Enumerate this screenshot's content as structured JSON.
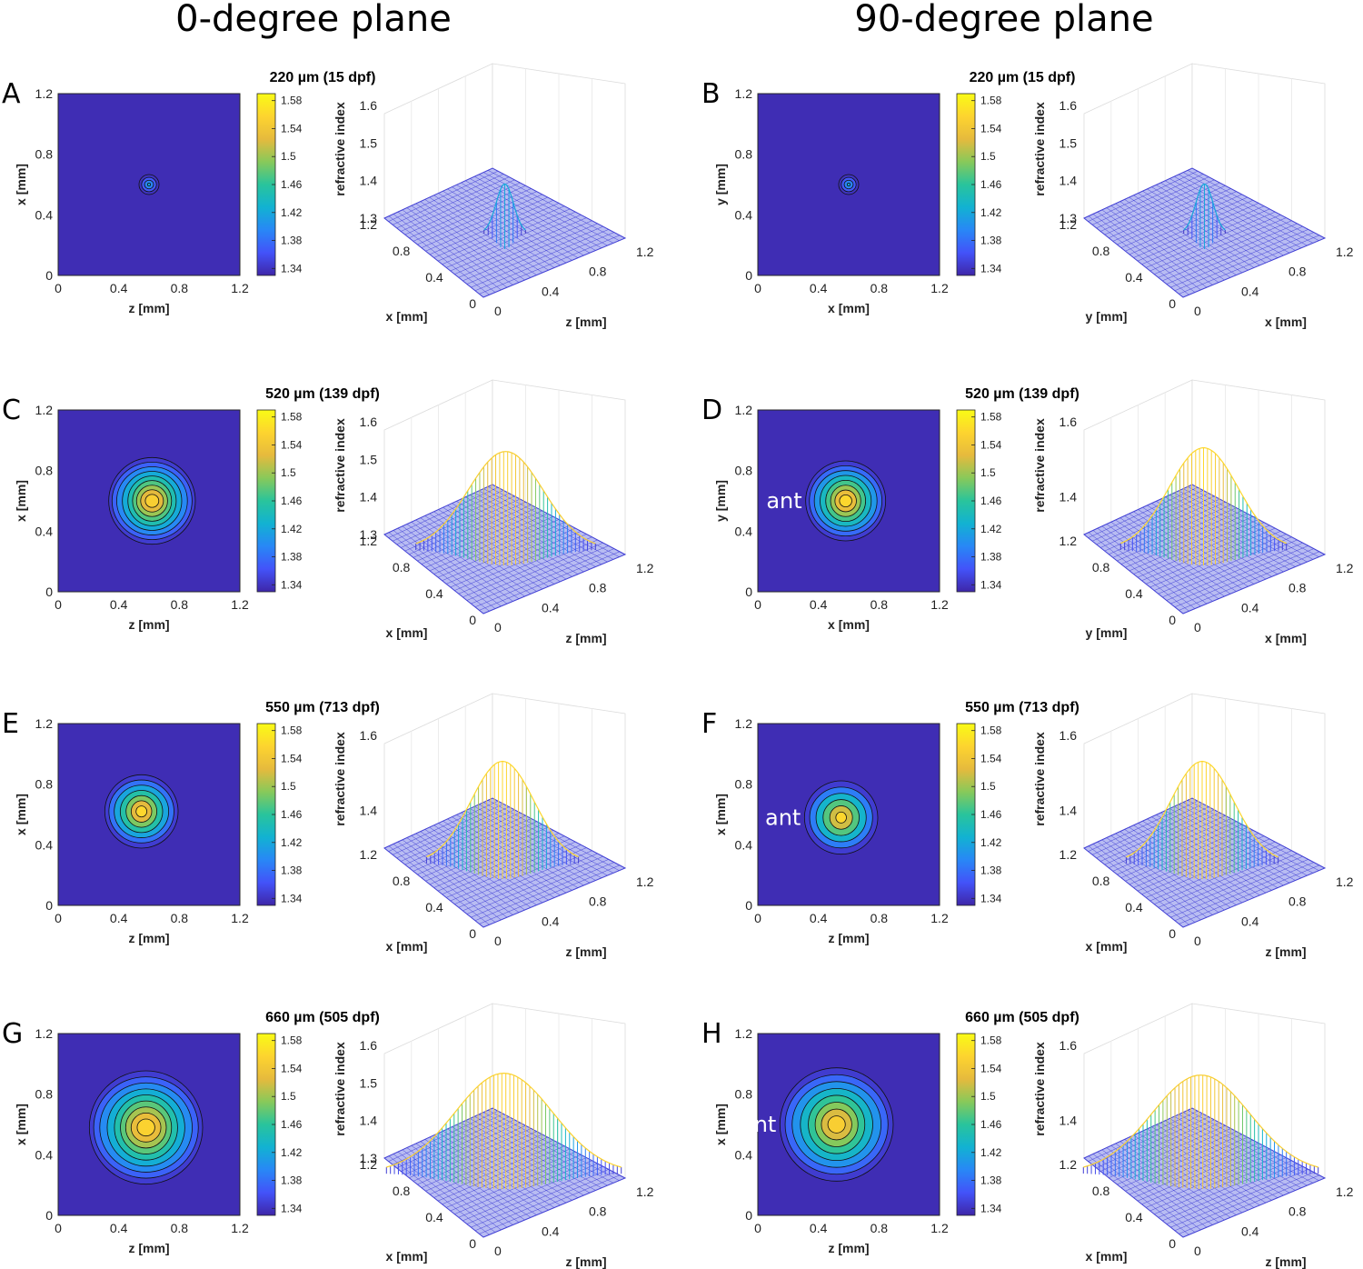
{
  "column_headers": [
    "0-degree plane",
    "90-degree plane"
  ],
  "chart_data": [
    {
      "panel": "A",
      "type": "heatmap",
      "subtype": "contour map + 3D mesh surface",
      "title": "220 µm (15 dpf)",
      "xlabel": "z [mm]",
      "ylabel": "x [mm]",
      "zlabel": "refractive index",
      "ticks": [
        "0",
        "0.4",
        "0.8",
        "1.2"
      ],
      "xlim": [
        0,
        1.2
      ],
      "ylim": [
        0,
        1.2
      ],
      "colorbar": {
        "ticks": [
          "1.34",
          "1.38",
          "1.42",
          "1.46",
          "1.5",
          "1.54",
          "1.58"
        ],
        "range": [
          1.33,
          1.59
        ]
      },
      "zticks": [
        "1.3",
        "1.4",
        "1.5",
        "1.6"
      ],
      "center": [
        0.6,
        0.6
      ],
      "sigma": 0.03,
      "background": 1.335,
      "peak": 1.42,
      "contours": 4,
      "annotation": "",
      "colormap": [
        "#3e26a8",
        "#4353f9",
        "#2887f6",
        "#12b2d2",
        "#29c49c",
        "#88c95a",
        "#e6ba3d",
        "#fdd42f",
        "#f9fb15"
      ],
      "grid": true
    },
    {
      "panel": "B",
      "type": "heatmap",
      "subtype": "contour map + 3D mesh surface",
      "title": "220 µm (15 dpf)",
      "xlabel": "x [mm]",
      "ylabel": "y [mm]",
      "zlabel": "refractive index",
      "ticks": [
        "0",
        "0.4",
        "0.8",
        "1.2"
      ],
      "xlim": [
        0,
        1.2
      ],
      "ylim": [
        0,
        1.2
      ],
      "colorbar": {
        "ticks": [
          "1.34",
          "1.38",
          "1.42",
          "1.46",
          "1.5",
          "1.54",
          "1.58"
        ],
        "range": [
          1.33,
          1.59
        ]
      },
      "zticks": [
        "1.3",
        "1.4",
        "1.5",
        "1.6"
      ],
      "center": [
        0.6,
        0.6
      ],
      "sigma": 0.03,
      "background": 1.335,
      "peak": 1.42,
      "contours": 4,
      "annotation": "",
      "colormap": [
        "#3e26a8",
        "#4353f9",
        "#2887f6",
        "#12b2d2",
        "#29c49c",
        "#88c95a",
        "#e6ba3d",
        "#fdd42f",
        "#f9fb15"
      ],
      "grid": true
    },
    {
      "panel": "C",
      "type": "heatmap",
      "subtype": "contour map + 3D mesh surface",
      "title": "520 µm (139 dpf)",
      "xlabel": "z [mm]",
      "ylabel": "x [mm]",
      "zlabel": "refractive index",
      "ticks": [
        "0",
        "0.4",
        "0.8",
        "1.2"
      ],
      "xlim": [
        0,
        1.2
      ],
      "ylim": [
        0,
        1.2
      ],
      "colorbar": {
        "ticks": [
          "1.34",
          "1.38",
          "1.42",
          "1.46",
          "1.5",
          "1.54",
          "1.58"
        ],
        "range": [
          1.33,
          1.59
        ]
      },
      "zticks": [
        "1.3",
        "1.4",
        "1.5",
        "1.6"
      ],
      "center": [
        0.62,
        0.6
      ],
      "sigma": 0.13,
      "background": 1.335,
      "peak": 1.55,
      "contours": 9,
      "annotation": "",
      "colormap": [
        "#3e26a8",
        "#4353f9",
        "#2887f6",
        "#12b2d2",
        "#29c49c",
        "#88c95a",
        "#e6ba3d",
        "#fdd42f",
        "#f9fb15"
      ],
      "grid": true
    },
    {
      "panel": "D",
      "type": "heatmap",
      "subtype": "contour map + 3D mesh surface",
      "title": "520 µm (139 dpf)",
      "xlabel": "x [mm]",
      "ylabel": "y [mm]",
      "zlabel": "refractive index",
      "ticks": [
        "0",
        "0.4",
        "0.8",
        "1.2"
      ],
      "xlim": [
        0,
        1.2
      ],
      "ylim": [
        0,
        1.2
      ],
      "colorbar": {
        "ticks": [
          "1.34",
          "1.38",
          "1.42",
          "1.46",
          "1.5",
          "1.54",
          "1.58"
        ],
        "range": [
          1.33,
          1.59
        ]
      },
      "zticks": [
        "1.4",
        "1.6"
      ],
      "center": [
        0.58,
        0.6
      ],
      "sigma": 0.12,
      "background": 1.335,
      "peak": 1.56,
      "contours": 8,
      "annotation": "ant",
      "colormap": [
        "#3e26a8",
        "#4353f9",
        "#2887f6",
        "#12b2d2",
        "#29c49c",
        "#88c95a",
        "#e6ba3d",
        "#fdd42f",
        "#f9fb15"
      ],
      "grid": true
    },
    {
      "panel": "E",
      "type": "heatmap",
      "subtype": "contour map + 3D mesh surface",
      "title": "550 µm (713 dpf)",
      "xlabel": "z [mm]",
      "ylabel": "x [mm]",
      "zlabel": "refractive index",
      "ticks": [
        "0",
        "0.4",
        "0.8",
        "1.2"
      ],
      "xlim": [
        0,
        1.2
      ],
      "ylim": [
        0,
        1.2
      ],
      "colorbar": {
        "ticks": [
          "1.34",
          "1.38",
          "1.42",
          "1.46",
          "1.5",
          "1.54",
          "1.58"
        ],
        "range": [
          1.33,
          1.59
        ]
      },
      "zticks": [
        "1.4",
        "1.6"
      ],
      "center": [
        0.55,
        0.62
      ],
      "sigma": 0.11,
      "background": 1.335,
      "peak": 1.56,
      "contours": 7,
      "annotation": "",
      "colormap": [
        "#3e26a8",
        "#4353f9",
        "#2887f6",
        "#12b2d2",
        "#29c49c",
        "#88c95a",
        "#e6ba3d",
        "#fdd42f",
        "#f9fb15"
      ],
      "grid": true
    },
    {
      "panel": "F",
      "type": "heatmap",
      "subtype": "contour map + 3D mesh surface",
      "title": "550 µm (713 dpf)",
      "xlabel": "z [mm]",
      "ylabel": "x [mm]",
      "zlabel": "refractive index",
      "ticks": [
        "0",
        "0.4",
        "0.8",
        "1.2"
      ],
      "xlim": [
        0,
        1.2
      ],
      "ylim": [
        0,
        1.2
      ],
      "colorbar": {
        "ticks": [
          "1.34",
          "1.38",
          "1.42",
          "1.46",
          "1.5",
          "1.54",
          "1.58"
        ],
        "range": [
          1.33,
          1.59
        ]
      },
      "zticks": [
        "1.4",
        "1.6"
      ],
      "center": [
        0.55,
        0.58
      ],
      "sigma": 0.11,
      "background": 1.335,
      "peak": 1.56,
      "contours": 6,
      "annotation": "ant",
      "colormap": [
        "#3e26a8",
        "#4353f9",
        "#2887f6",
        "#12b2d2",
        "#29c49c",
        "#88c95a",
        "#e6ba3d",
        "#fdd42f",
        "#f9fb15"
      ],
      "grid": true
    },
    {
      "panel": "G",
      "type": "heatmap",
      "subtype": "contour map + 3D mesh surface",
      "title": "660 µm (505 dpf)",
      "xlabel": "z [mm]",
      "ylabel": "x [mm]",
      "zlabel": "refractive index",
      "ticks": [
        "0",
        "0.4",
        "0.8",
        "1.2"
      ],
      "xlim": [
        0,
        1.2
      ],
      "ylim": [
        0,
        1.2
      ],
      "colorbar": {
        "ticks": [
          "1.34",
          "1.38",
          "1.42",
          "1.46",
          "1.5",
          "1.54",
          "1.58"
        ],
        "range": [
          1.33,
          1.59
        ]
      },
      "zticks": [
        "1.3",
        "1.4",
        "1.5",
        "1.6"
      ],
      "center": [
        0.58,
        0.58
      ],
      "sigma": 0.17,
      "background": 1.335,
      "peak": 1.555,
      "contours": 9,
      "annotation": "",
      "colormap": [
        "#3e26a8",
        "#4353f9",
        "#2887f6",
        "#12b2d2",
        "#29c49c",
        "#88c95a",
        "#e6ba3d",
        "#fdd42f",
        "#f9fb15"
      ],
      "grid": true
    },
    {
      "panel": "H",
      "type": "heatmap",
      "subtype": "contour map + 3D mesh surface",
      "title": "660 µm (505 dpf)",
      "xlabel": "z [mm]",
      "ylabel": "x [mm]",
      "zlabel": "refractive index",
      "ticks": [
        "0",
        "0.4",
        "0.8",
        "1.2"
      ],
      "xlim": [
        0,
        1.2
      ],
      "ylim": [
        0,
        1.2
      ],
      "colorbar": {
        "ticks": [
          "1.34",
          "1.38",
          "1.42",
          "1.46",
          "1.5",
          "1.54",
          "1.58"
        ],
        "range": [
          1.33,
          1.59
        ]
      },
      "zticks": [
        "1.4",
        "1.6"
      ],
      "center": [
        0.52,
        0.6
      ],
      "sigma": 0.17,
      "background": 1.335,
      "peak": 1.55,
      "contours": 8,
      "annotation": "ant",
      "colormap": [
        "#3e26a8",
        "#4353f9",
        "#2887f6",
        "#12b2d2",
        "#29c49c",
        "#88c95a",
        "#e6ba3d",
        "#fdd42f",
        "#f9fb15"
      ],
      "grid": true
    }
  ]
}
